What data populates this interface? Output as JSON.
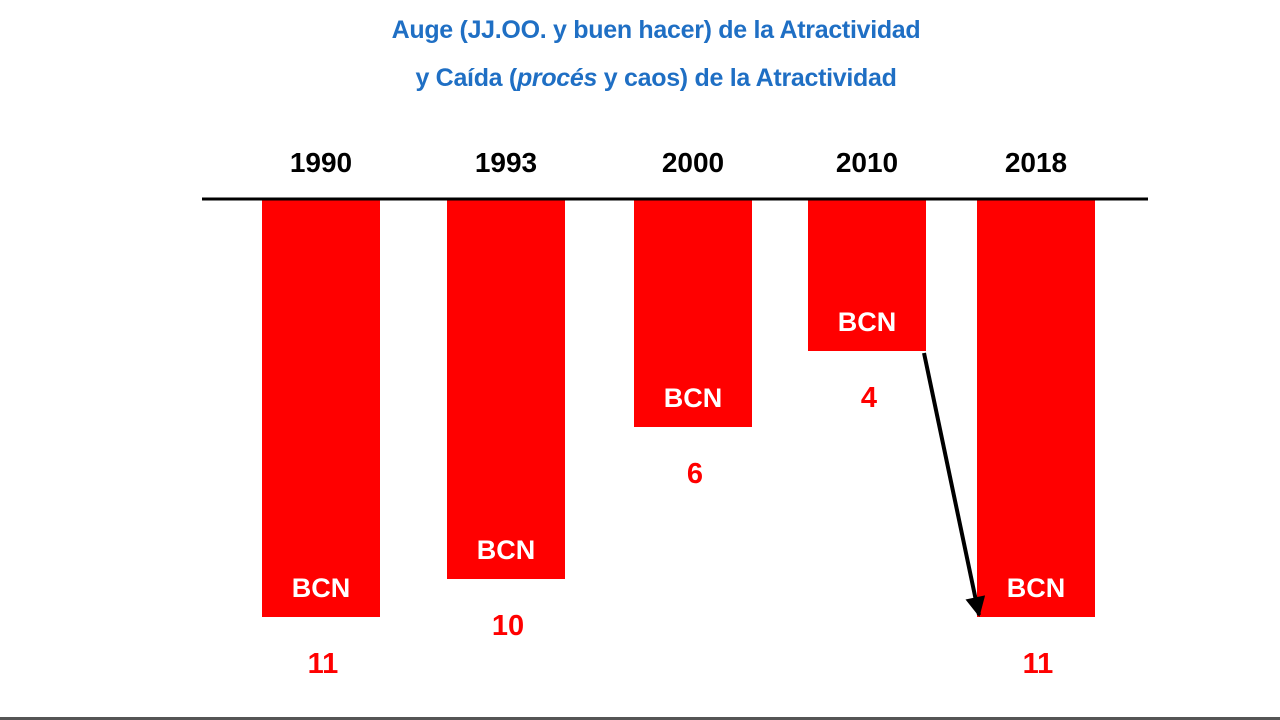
{
  "chart_data": {
    "type": "bar",
    "orientation": "inverted",
    "title": {
      "line1": "Auge (JJ.OO. y buen hacer) de la Atractividad",
      "line2_prefix": "y Caída (",
      "line2_italic": "procés",
      "line2_suffix": " y caos) de la Atractividad"
    },
    "categories": [
      "1990",
      "1993",
      "2000",
      "2010",
      "2018"
    ],
    "bar_label": "BCN",
    "values": [
      11,
      10,
      6,
      4,
      11
    ],
    "ylim": [
      0,
      11
    ],
    "grid": false,
    "legend": "none",
    "colors": {
      "bar": "#ff0000",
      "value_label": "#ff0000",
      "title": "#1f6fc4",
      "axis": "#000000"
    },
    "annotation": "arrow-from-2010-to-2018"
  }
}
